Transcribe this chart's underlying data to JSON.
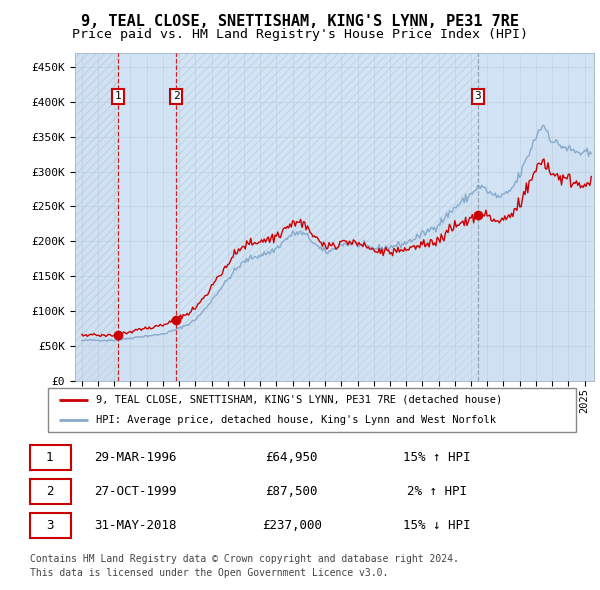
{
  "title": "9, TEAL CLOSE, SNETTISHAM, KING'S LYNN, PE31 7RE",
  "subtitle": "Price paid vs. HM Land Registry's House Price Index (HPI)",
  "ylim": [
    0,
    470000
  ],
  "yticks": [
    0,
    50000,
    100000,
    150000,
    200000,
    250000,
    300000,
    350000,
    400000,
    450000
  ],
  "ytick_labels": [
    "£0",
    "£50K",
    "£100K",
    "£150K",
    "£200K",
    "£250K",
    "£300K",
    "£350K",
    "£400K",
    "£450K"
  ],
  "sale_prices": [
    64950,
    87500,
    237000
  ],
  "sale_labels": [
    "1",
    "2",
    "3"
  ],
  "sale_date_strs": [
    "29-MAR-1996",
    "27-OCT-1999",
    "31-MAY-2018"
  ],
  "sale_pct_strs": [
    "15% ↑ HPI",
    "2% ↑ HPI",
    "15% ↓ HPI"
  ],
  "property_color": "#cc0000",
  "hpi_color": "#88aacc",
  "hpi_fill_color": "#ccddf0",
  "vline_color_red": "#cc0000",
  "vline_color_gray": "#8899aa",
  "label_box_color": "#cc0000",
  "legend_property": "9, TEAL CLOSE, SNETTISHAM, KING'S LYNN, PE31 7RE (detached house)",
  "legend_hpi": "HPI: Average price, detached house, King's Lynn and West Norfolk",
  "footer1": "Contains HM Land Registry data © Crown copyright and database right 2024.",
  "footer2": "This data is licensed under the Open Government Licence v3.0.",
  "plot_bg": "#ddeeff",
  "grid_color": "#bbccdd",
  "title_fontsize": 11,
  "subtitle_fontsize": 9.5,
  "hatch_bg": "#c8d8e8"
}
